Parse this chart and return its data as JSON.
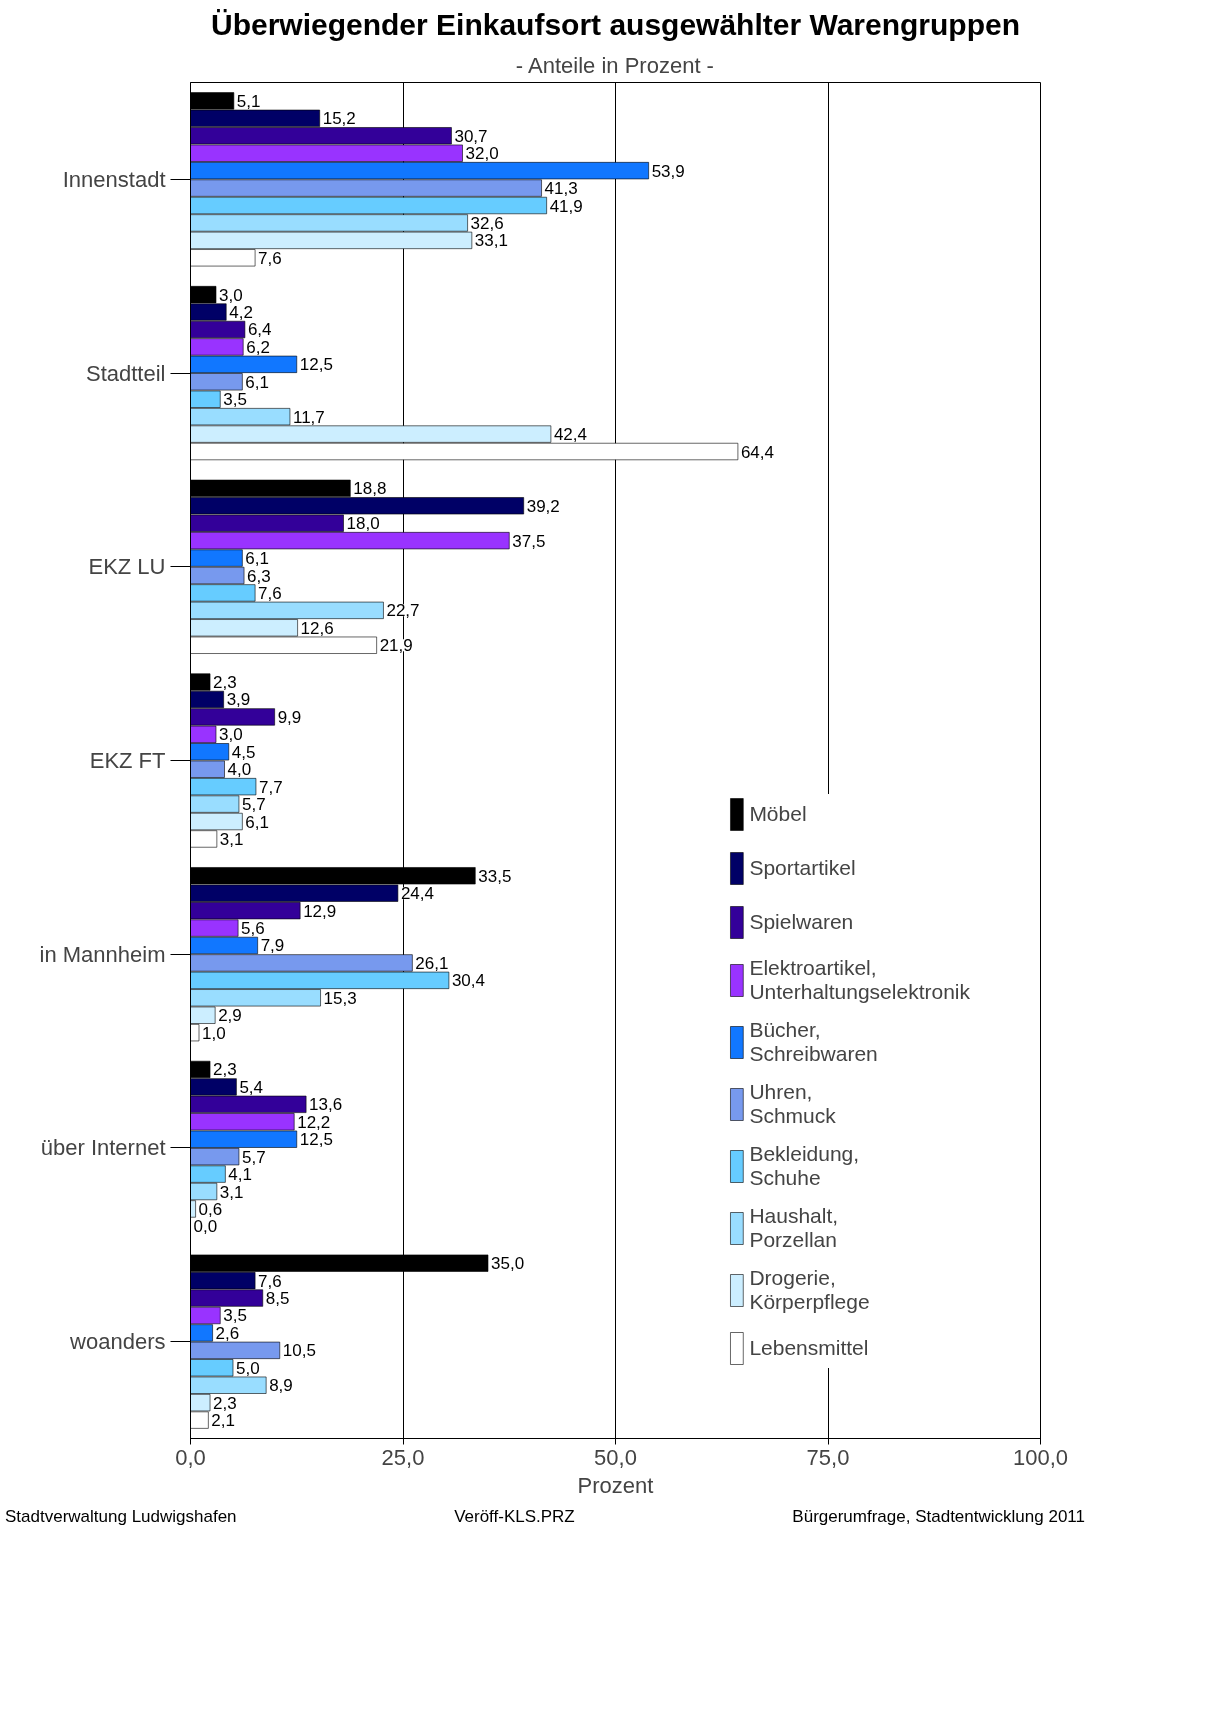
{
  "chart_data": {
    "type": "bar",
    "orientation": "horizontal",
    "title": "Überwiegender Einkaufsort ausgewählter Warengruppen",
    "subtitle": "- Anteile in Prozent -",
    "xlabel": "Prozent",
    "categories": [
      "Innenstadt",
      "Stadtteil",
      "EKZ LU",
      "EKZ FT",
      "in Mannheim",
      "über Internet",
      "woanders"
    ],
    "xlim": [
      0,
      100
    ],
    "xticks": [
      {
        "value": 0,
        "label": "0,0"
      },
      {
        "value": 25,
        "label": "25,0"
      },
      {
        "value": 50,
        "label": "50,0"
      },
      {
        "value": 75,
        "label": "75,0"
      },
      {
        "value": 100,
        "label": "100,0"
      }
    ],
    "grid": "x",
    "legend": "bottom right",
    "series": [
      {
        "name": "Möbel",
        "color": "#000000",
        "values": [
          5.1,
          3.0,
          18.8,
          2.3,
          33.5,
          2.3,
          35.0
        ],
        "value_labels": [
          "5,1",
          "3,0",
          "18,8",
          "2,3",
          "33,5",
          "2,3",
          "35,0"
        ]
      },
      {
        "name": "Sportartikel",
        "color": "#000066",
        "values": [
          15.2,
          4.2,
          39.2,
          3.9,
          24.4,
          5.4,
          7.6
        ],
        "value_labels": [
          "15,2",
          "4,2",
          "39,2",
          "3,9",
          "24,4",
          "5,4",
          "7,6"
        ]
      },
      {
        "name": "Spielwaren",
        "color": "#330099",
        "values": [
          30.7,
          6.4,
          18.0,
          9.9,
          12.9,
          13.6,
          8.5
        ],
        "value_labels": [
          "30,7",
          "6,4",
          "18,0",
          "9,9",
          "12,9",
          "13,6",
          "8,5"
        ]
      },
      {
        "name": "Elektroartikel, Unterhaltungselektronik",
        "color": "#9933ff",
        "values": [
          32.0,
          6.2,
          37.5,
          3.0,
          5.6,
          12.2,
          3.5
        ],
        "value_labels": [
          "32,0",
          "6,2",
          "37,5",
          "3,0",
          "5,6",
          "12,2",
          "3,5"
        ]
      },
      {
        "name": "Bücher, Schreibwaren",
        "color": "#1177ff",
        "values": [
          53.9,
          12.5,
          6.1,
          4.5,
          7.9,
          12.5,
          2.6
        ],
        "value_labels": [
          "53,9",
          "12,5",
          "6,1",
          "4,5",
          "7,9",
          "12,5",
          "2,6"
        ]
      },
      {
        "name": "Uhren, Schmuck",
        "color": "#7799ee",
        "values": [
          41.3,
          6.1,
          6.3,
          4.0,
          26.1,
          5.7,
          10.5
        ],
        "value_labels": [
          "41,3",
          "6,1",
          "6,3",
          "4,0",
          "26,1",
          "5,7",
          "10,5"
        ]
      },
      {
        "name": "Bekleidung, Schuhe",
        "color": "#66ccff",
        "values": [
          41.9,
          3.5,
          7.6,
          7.7,
          30.4,
          4.1,
          5.0
        ],
        "value_labels": [
          "41,9",
          "3,5",
          "7,6",
          "7,7",
          "30,4",
          "4,1",
          "5,0"
        ]
      },
      {
        "name": "Haushalt, Porzellan",
        "color": "#99ddff",
        "values": [
          32.6,
          11.7,
          22.7,
          5.7,
          15.3,
          3.1,
          8.9
        ],
        "value_labels": [
          "32,6",
          "11,7",
          "22,7",
          "5,7",
          "15,3",
          "3,1",
          "8,9"
        ]
      },
      {
        "name": "Drogerie, Körperpflege",
        "color": "#cceeff",
        "values": [
          33.1,
          42.4,
          12.6,
          6.1,
          2.9,
          0.6,
          2.3
        ],
        "value_labels": [
          "33,1",
          "42,4",
          "12,6",
          "6,1",
          "2,9",
          "0,6",
          "2,3"
        ]
      },
      {
        "name": "Lebensmittel",
        "color": "#ffffff",
        "values": [
          7.6,
          64.4,
          21.9,
          3.1,
          1.0,
          0.0,
          2.1
        ],
        "value_labels": [
          "7,6",
          "64,4",
          "21,9",
          "3,1",
          "1,0",
          "0,0",
          "2,1"
        ]
      }
    ],
    "annotations": [
      "Stadtverwaltung Ludwigshafen",
      "Veröff-KLS.PRZ",
      "Bürgerumfrage, Stadtentwicklung 2011"
    ]
  }
}
